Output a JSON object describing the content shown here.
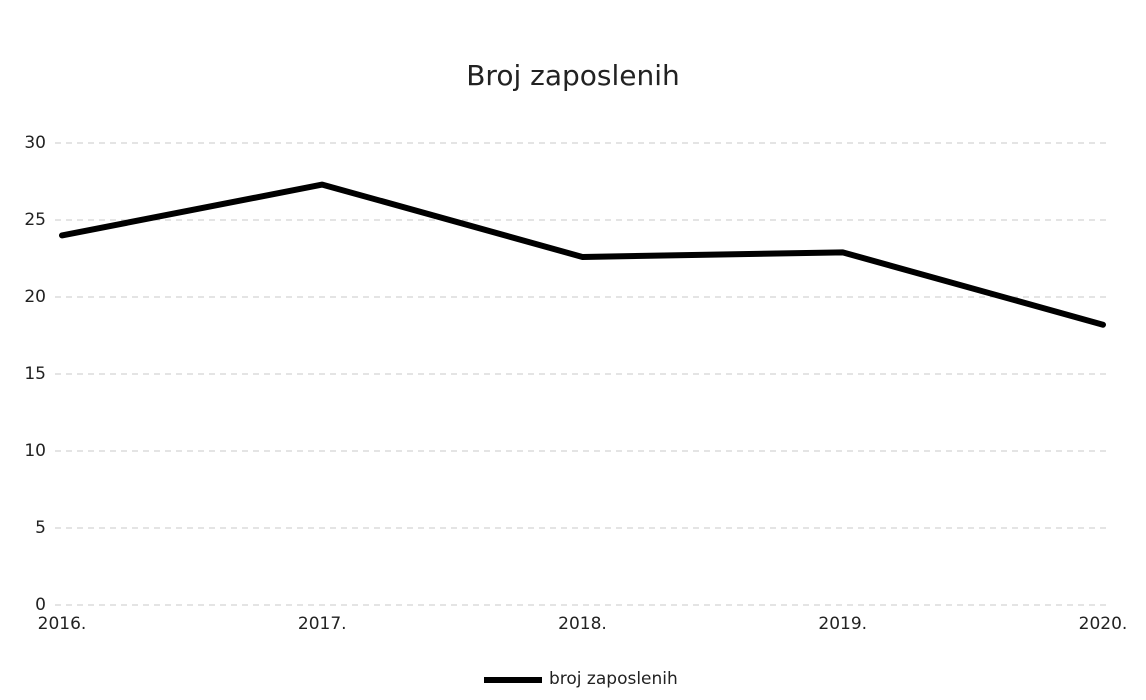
{
  "chart_data": {
    "type": "line",
    "title": "Broj zaposlenih",
    "categories": [
      "2016.",
      "2017.",
      "2018.",
      "2019.",
      "2020."
    ],
    "series": [
      {
        "name": "broj zaposlenih",
        "color": "#000000",
        "values": [
          24,
          27.3,
          22.6,
          22.9,
          18.2
        ]
      }
    ],
    "ylim": [
      0,
      30
    ],
    "yticks": [
      0,
      5,
      10,
      15,
      20,
      25,
      30
    ],
    "grid": true,
    "legend": "bottom"
  }
}
